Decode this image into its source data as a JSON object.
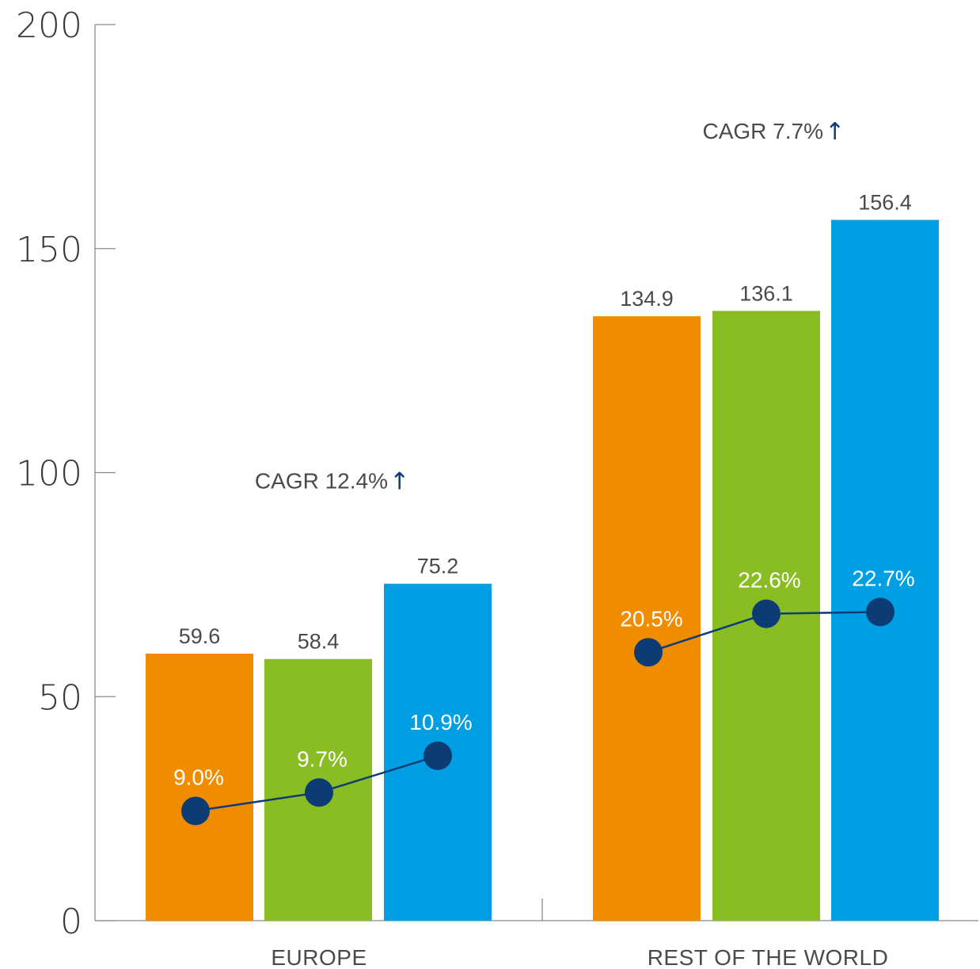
{
  "chart_data": {
    "type": "bar",
    "categories": [
      "EUROPE",
      "REST OF THE WORLD"
    ],
    "ylim": [
      0,
      200
    ],
    "yticks": [
      0,
      50,
      100,
      150,
      200
    ],
    "grid": false,
    "series": [
      {
        "color": "#f08c00",
        "values": [
          59.6,
          134.9
        ]
      },
      {
        "color": "#8abd24",
        "values": [
          58.4,
          136.1
        ]
      },
      {
        "color": "#009fe3",
        "values": [
          75.2,
          156.4
        ]
      }
    ],
    "value_labels": [
      [
        "59.6",
        "58.4",
        "75.2"
      ],
      [
        "134.9",
        "136.1",
        "156.4"
      ]
    ],
    "line_series": {
      "color": "#0d3c75",
      "percent_values": [
        [
          9.0,
          9.7,
          10.9
        ],
        [
          20.5,
          22.6,
          22.7
        ]
      ],
      "percent_labels": [
        [
          "9.0%",
          "9.7%",
          "10.9%"
        ],
        [
          "20.5%",
          "22.6%",
          "22.7%"
        ]
      ],
      "marker_levels": [
        [
          24.5,
          28.6,
          36.8
        ],
        [
          59.9,
          68.5,
          68.9
        ]
      ]
    },
    "annotations": [
      {
        "group": 0,
        "text": "CAGR 12.4%",
        "arrow": "↑",
        "level": 96.5
      },
      {
        "group": 1,
        "text": "CAGR 7.7%",
        "arrow": "↑",
        "level": 174.5
      }
    ]
  }
}
